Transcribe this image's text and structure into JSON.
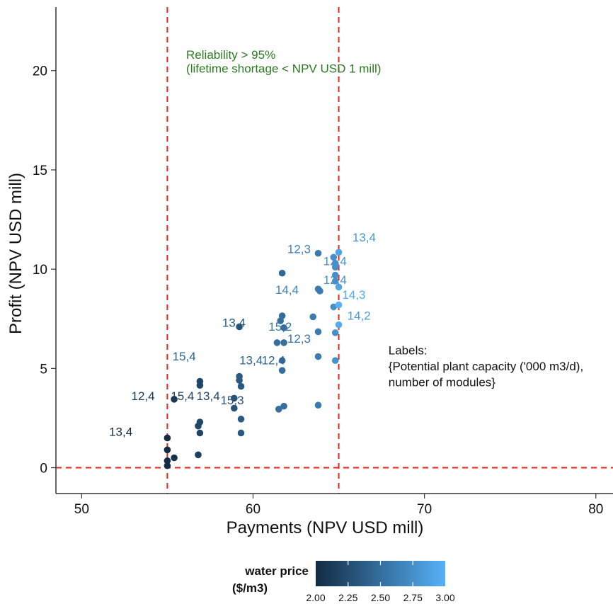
{
  "chart_data": {
    "type": "scatter",
    "title": "",
    "xlabel": "Payments (NPV USD mill)",
    "ylabel": "Profit (NPV USD mill)",
    "xlim": [
      48.5,
      81
    ],
    "ylim": [
      -1.3,
      23.2
    ],
    "x_ticks": [
      50,
      60,
      70,
      80
    ],
    "y_ticks": [
      0,
      5,
      10,
      15,
      20
    ],
    "grid": false,
    "reference_lines": [
      {
        "orientation": "vertical",
        "value": 55,
        "color": "#e8231b",
        "style": "dashed"
      },
      {
        "orientation": "vertical",
        "value": 65,
        "color": "#e8231b",
        "style": "dashed"
      },
      {
        "orientation": "horizontal",
        "value": 0,
        "color": "#e8231b",
        "style": "dashed"
      }
    ],
    "annotations": [
      {
        "text": "Reliability > 95%",
        "x": 56.1,
        "y": 20.6,
        "color": "#2a7a1f"
      },
      {
        "text": "(lifetime shortage < NPV USD 1 mill)",
        "x": 56.1,
        "y": 19.9,
        "color": "#2a7a1f"
      },
      {
        "text": "Labels:",
        "x": 67.9,
        "y": 5.7,
        "color": "#111111"
      },
      {
        "text": "{Potential plant capacity ('000 m3/d),",
        "x": 67.9,
        "y": 4.9,
        "color": "#111111"
      },
      {
        "text": " number of modules}",
        "x": 67.9,
        "y": 4.1,
        "color": "#111111"
      }
    ],
    "colorbar": {
      "title": [
        "water price",
        "($/m3)"
      ],
      "min": 2.0,
      "max": 3.0,
      "ticks": [
        "2.00",
        "2.25",
        "2.50",
        "2.75",
        "3.00"
      ],
      "color_low": "#132b43",
      "color_high": "#56b1f7"
    },
    "points": [
      {
        "x": 55.0,
        "y": 1.5,
        "price": 2.0
      },
      {
        "x": 55.0,
        "y": 0.9,
        "price": 2.0
      },
      {
        "x": 55.0,
        "y": 0.35,
        "price": 2.0
      },
      {
        "x": 55.0,
        "y": 0.1,
        "price": 2.0
      },
      {
        "x": 55.4,
        "y": 0.5,
        "price": 2.05
      },
      {
        "x": 55.4,
        "y": 3.45,
        "price": 2.1
      },
      {
        "x": 56.9,
        "y": 4.35,
        "price": 2.2
      },
      {
        "x": 56.9,
        "y": 4.15,
        "price": 2.2
      },
      {
        "x": 56.9,
        "y": 2.3,
        "price": 2.2
      },
      {
        "x": 56.8,
        "y": 2.1,
        "price": 2.2
      },
      {
        "x": 56.9,
        "y": 1.75,
        "price": 2.2
      },
      {
        "x": 56.8,
        "y": 0.65,
        "price": 2.15
      },
      {
        "x": 58.9,
        "y": 3.5,
        "price": 2.3
      },
      {
        "x": 58.9,
        "y": 3.0,
        "price": 2.3
      },
      {
        "x": 59.2,
        "y": 7.1,
        "price": 2.3
      },
      {
        "x": 59.2,
        "y": 4.6,
        "price": 2.35
      },
      {
        "x": 59.2,
        "y": 4.4,
        "price": 2.35
      },
      {
        "x": 59.3,
        "y": 4.1,
        "price": 2.35
      },
      {
        "x": 59.3,
        "y": 2.45,
        "price": 2.35
      },
      {
        "x": 59.3,
        "y": 1.75,
        "price": 2.35
      },
      {
        "x": 61.4,
        "y": 6.3,
        "price": 2.5
      },
      {
        "x": 61.6,
        "y": 7.4,
        "price": 2.5
      },
      {
        "x": 61.7,
        "y": 7.65,
        "price": 2.5
      },
      {
        "x": 61.7,
        "y": 9.8,
        "price": 2.45
      },
      {
        "x": 61.8,
        "y": 7.05,
        "price": 2.5
      },
      {
        "x": 61.8,
        "y": 6.3,
        "price": 2.5
      },
      {
        "x": 61.7,
        "y": 5.4,
        "price": 2.5
      },
      {
        "x": 61.7,
        "y": 4.9,
        "price": 2.5
      },
      {
        "x": 61.5,
        "y": 2.95,
        "price": 2.5
      },
      {
        "x": 61.8,
        "y": 3.1,
        "price": 2.5
      },
      {
        "x": 63.5,
        "y": 7.6,
        "price": 2.6
      },
      {
        "x": 63.8,
        "y": 10.8,
        "price": 2.6
      },
      {
        "x": 63.8,
        "y": 9.0,
        "price": 2.6
      },
      {
        "x": 63.9,
        "y": 8.9,
        "price": 2.6
      },
      {
        "x": 63.8,
        "y": 6.85,
        "price": 2.6
      },
      {
        "x": 63.8,
        "y": 5.6,
        "price": 2.6
      },
      {
        "x": 63.8,
        "y": 3.15,
        "price": 2.6
      },
      {
        "x": 64.7,
        "y": 10.6,
        "price": 2.75
      },
      {
        "x": 64.8,
        "y": 10.3,
        "price": 2.75
      },
      {
        "x": 64.8,
        "y": 10.1,
        "price": 2.75
      },
      {
        "x": 64.8,
        "y": 9.7,
        "price": 2.75
      },
      {
        "x": 64.8,
        "y": 9.4,
        "price": 2.75
      },
      {
        "x": 64.7,
        "y": 8.1,
        "price": 2.75
      },
      {
        "x": 64.8,
        "y": 6.8,
        "price": 2.75
      },
      {
        "x": 64.8,
        "y": 5.4,
        "price": 2.75
      },
      {
        "x": 65.0,
        "y": 10.85,
        "price": 2.9
      },
      {
        "x": 65.0,
        "y": 9.1,
        "price": 2.9
      },
      {
        "x": 65.0,
        "y": 8.2,
        "price": 3.0
      },
      {
        "x": 65.0,
        "y": 7.2,
        "price": 2.95
      }
    ],
    "point_labels": [
      {
        "text": "13,4",
        "x": 51.6,
        "y": 1.6,
        "price": 2.0
      },
      {
        "text": "12,4",
        "x": 52.9,
        "y": 3.4,
        "price": 2.1
      },
      {
        "text": "15,4",
        "x": 55.2,
        "y": 3.4,
        "price": 2.15
      },
      {
        "text": "13,4",
        "x": 56.7,
        "y": 3.4,
        "price": 2.2
      },
      {
        "text": "15,3",
        "x": 58.1,
        "y": 3.2,
        "price": 2.3
      },
      {
        "text": "15,4",
        "x": 55.3,
        "y": 5.4,
        "price": 2.4
      },
      {
        "text": "13,4",
        "x": 59.2,
        "y": 5.2,
        "price": 2.4
      },
      {
        "text": "12,4",
        "x": 60.5,
        "y": 5.2,
        "price": 2.4
      },
      {
        "text": "13,4",
        "x": 58.2,
        "y": 7.1,
        "price": 2.35
      },
      {
        "text": "15,2",
        "x": 60.9,
        "y": 6.9,
        "price": 2.55
      },
      {
        "text": "12,3",
        "x": 62.0,
        "y": 6.3,
        "price": 2.55
      },
      {
        "text": "14,4",
        "x": 61.3,
        "y": 8.75,
        "price": 2.65
      },
      {
        "text": "12,3",
        "x": 62.0,
        "y": 10.8,
        "price": 2.65
      },
      {
        "text": "12,4",
        "x": 64.1,
        "y": 10.2,
        "price": 2.75
      },
      {
        "text": "12,4",
        "x": 64.1,
        "y": 9.25,
        "price": 2.75
      },
      {
        "text": "13,4",
        "x": 65.8,
        "y": 11.4,
        "price": 2.8
      },
      {
        "text": "14,3",
        "x": 65.2,
        "y": 8.5,
        "price": 2.95
      },
      {
        "text": "14,2",
        "x": 65.5,
        "y": 7.45,
        "price": 2.85
      }
    ]
  }
}
